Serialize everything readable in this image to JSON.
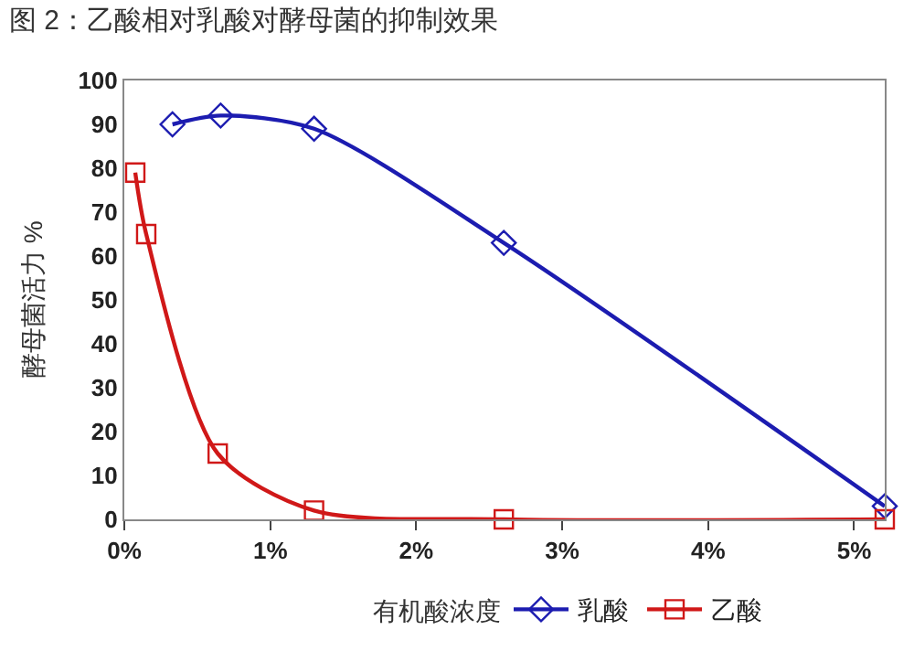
{
  "chart_data": {
    "type": "line",
    "title": "图 2：乙酸相对乳酸对酵母菌的抑制效果",
    "xlabel": "有机酸浓度",
    "ylabel": "酵母菌活力 %",
    "series": [
      {
        "name": "乳酸",
        "color": "#1c1cb0",
        "marker": "diamond",
        "x": [
          0.33,
          0.66,
          1.3,
          2.6,
          5.21
        ],
        "values": [
          90,
          92,
          89,
          63,
          3
        ]
      },
      {
        "name": "乙酸",
        "color": "#d01818",
        "marker": "square",
        "x": [
          0.075,
          0.15,
          0.64,
          1.3,
          2.6,
          5.21
        ],
        "values": [
          79,
          65,
          15,
          2,
          0,
          0
        ]
      }
    ],
    "xlim": [
      0,
      5.21
    ],
    "xticks": [
      {
        "value": 0,
        "label": "0%"
      },
      {
        "value": 1,
        "label": "1%"
      },
      {
        "value": 2,
        "label": "2%"
      },
      {
        "value": 3,
        "label": "3%"
      },
      {
        "value": 4,
        "label": "4%"
      },
      {
        "value": 5,
        "label": "5%"
      }
    ],
    "ylim": [
      0,
      100
    ],
    "yticks": [
      0,
      10,
      20,
      30,
      40,
      50,
      60,
      70,
      80,
      90,
      100
    ],
    "legend": "bottom",
    "line_style": "solid"
  }
}
